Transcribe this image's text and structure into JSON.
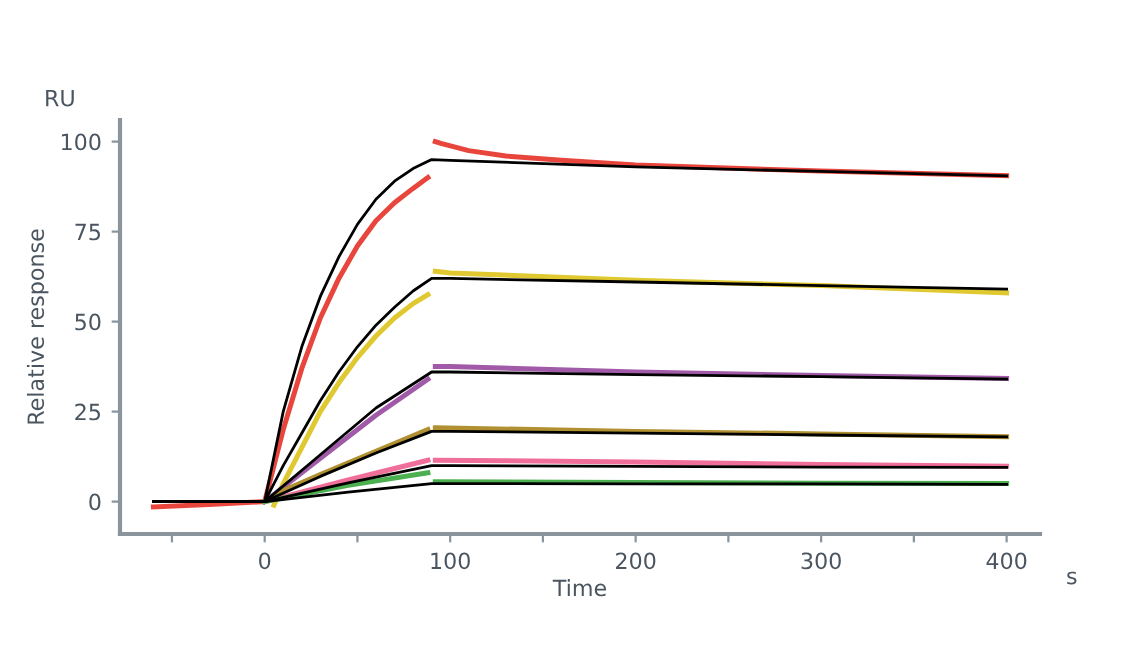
{
  "chart_data": {
    "type": "line",
    "xlabel": "Time",
    "ylabel": "Relative response",
    "annotations": [
      "RU",
      "s"
    ],
    "xlim": [
      -78,
      418
    ],
    "ylim": [
      -9,
      106
    ],
    "xticks": [
      {
        "value": -50,
        "label": null
      },
      0,
      {
        "value": 50,
        "label": null
      },
      100,
      {
        "value": 150,
        "label": null
      },
      200,
      {
        "value": 250,
        "label": null
      },
      300,
      {
        "value": 350,
        "label": null
      },
      400
    ],
    "yticks": [
      0,
      25,
      50,
      75,
      100
    ],
    "grid": false,
    "legend": false,
    "marker": "none",
    "line_style": "solid",
    "series": [
      {
        "color": "#e8453c",
        "x": [
          -60,
          -30,
          0,
          10,
          20,
          30,
          40,
          50,
          60,
          70,
          80,
          88,
          90,
          92,
          95,
          110,
          130,
          160,
          200,
          300,
          400
        ],
        "values": [
          -1.5,
          -0.8,
          0,
          20,
          37,
          51,
          62,
          71,
          78,
          83,
          87,
          90,
          null,
          100,
          99.5,
          97.5,
          96,
          94.8,
          93.5,
          91.8,
          90.5
        ]
      },
      {
        "color": "#e0c830",
        "x": [
          5,
          10,
          20,
          30,
          40,
          50,
          60,
          70,
          80,
          88,
          90,
          92,
          100,
          200,
          300,
          400
        ],
        "values": [
          -1,
          5,
          15,
          25,
          33,
          40,
          46,
          51,
          55,
          57.5,
          null,
          64,
          63.5,
          61.5,
          60,
          58
        ]
      },
      {
        "color": "#a05aa8",
        "x": [
          0,
          30,
          60,
          88,
          90,
          92,
          100,
          200,
          300,
          400
        ],
        "values": [
          0,
          12,
          24,
          34,
          null,
          37.5,
          37.5,
          36,
          35,
          34.2
        ]
      },
      {
        "color": "#b09030",
        "x": [
          0,
          10,
          30,
          60,
          88,
          90,
          92,
          200,
          300,
          400
        ],
        "values": [
          0,
          3,
          7.5,
          14,
          20,
          null,
          20.5,
          19.5,
          18.8,
          18
        ]
      },
      {
        "color": "#f06e9a",
        "x": [
          0,
          45,
          88,
          90,
          92,
          200,
          300,
          400
        ],
        "values": [
          0,
          6,
          11.5,
          null,
          11.5,
          11,
          10.3,
          9.8
        ]
      },
      {
        "color": "#4caf50",
        "x": [
          0,
          45,
          88,
          90,
          92,
          200,
          300,
          400
        ],
        "values": [
          0,
          4.5,
          8,
          null,
          5.5,
          5.3,
          5.1,
          5
        ]
      },
      {
        "color": "#000000",
        "x": [
          -60,
          0,
          10,
          20,
          30,
          40,
          50,
          60,
          70,
          80,
          90,
          100,
          200,
          300,
          400
        ],
        "values": [
          0,
          0,
          25,
          43,
          57,
          68,
          77,
          84,
          89,
          92.5,
          95,
          94.8,
          93,
          91.7,
          90.5
        ]
      },
      {
        "color": "#000000",
        "x": [
          -60,
          0,
          10,
          20,
          30,
          40,
          50,
          60,
          70,
          80,
          90,
          100,
          200,
          300,
          400
        ],
        "values": [
          0,
          0,
          10,
          19,
          28,
          36,
          43,
          49,
          54,
          58.5,
          62,
          62,
          61,
          60,
          59
        ]
      },
      {
        "color": "#000000",
        "x": [
          -60,
          0,
          30,
          60,
          90,
          100,
          200,
          300,
          400
        ],
        "values": [
          0,
          0,
          13,
          26,
          36,
          36,
          35.3,
          34.7,
          34
        ]
      },
      {
        "color": "#000000",
        "x": [
          -60,
          0,
          30,
          60,
          90,
          100,
          200,
          300,
          400
        ],
        "values": [
          0,
          0,
          7,
          13.5,
          19.5,
          19.5,
          19,
          18.5,
          18
        ]
      },
      {
        "color": "#000000",
        "x": [
          -60,
          0,
          45,
          90,
          100,
          200,
          300,
          400
        ],
        "values": [
          0,
          0,
          5.2,
          10,
          10,
          9.8,
          9.6,
          9.5
        ]
      },
      {
        "color": "#000000",
        "x": [
          -60,
          0,
          45,
          90,
          100,
          200,
          300,
          400
        ],
        "values": [
          0,
          0,
          2.6,
          5,
          5,
          4.9,
          4.9,
          4.8
        ]
      }
    ]
  }
}
